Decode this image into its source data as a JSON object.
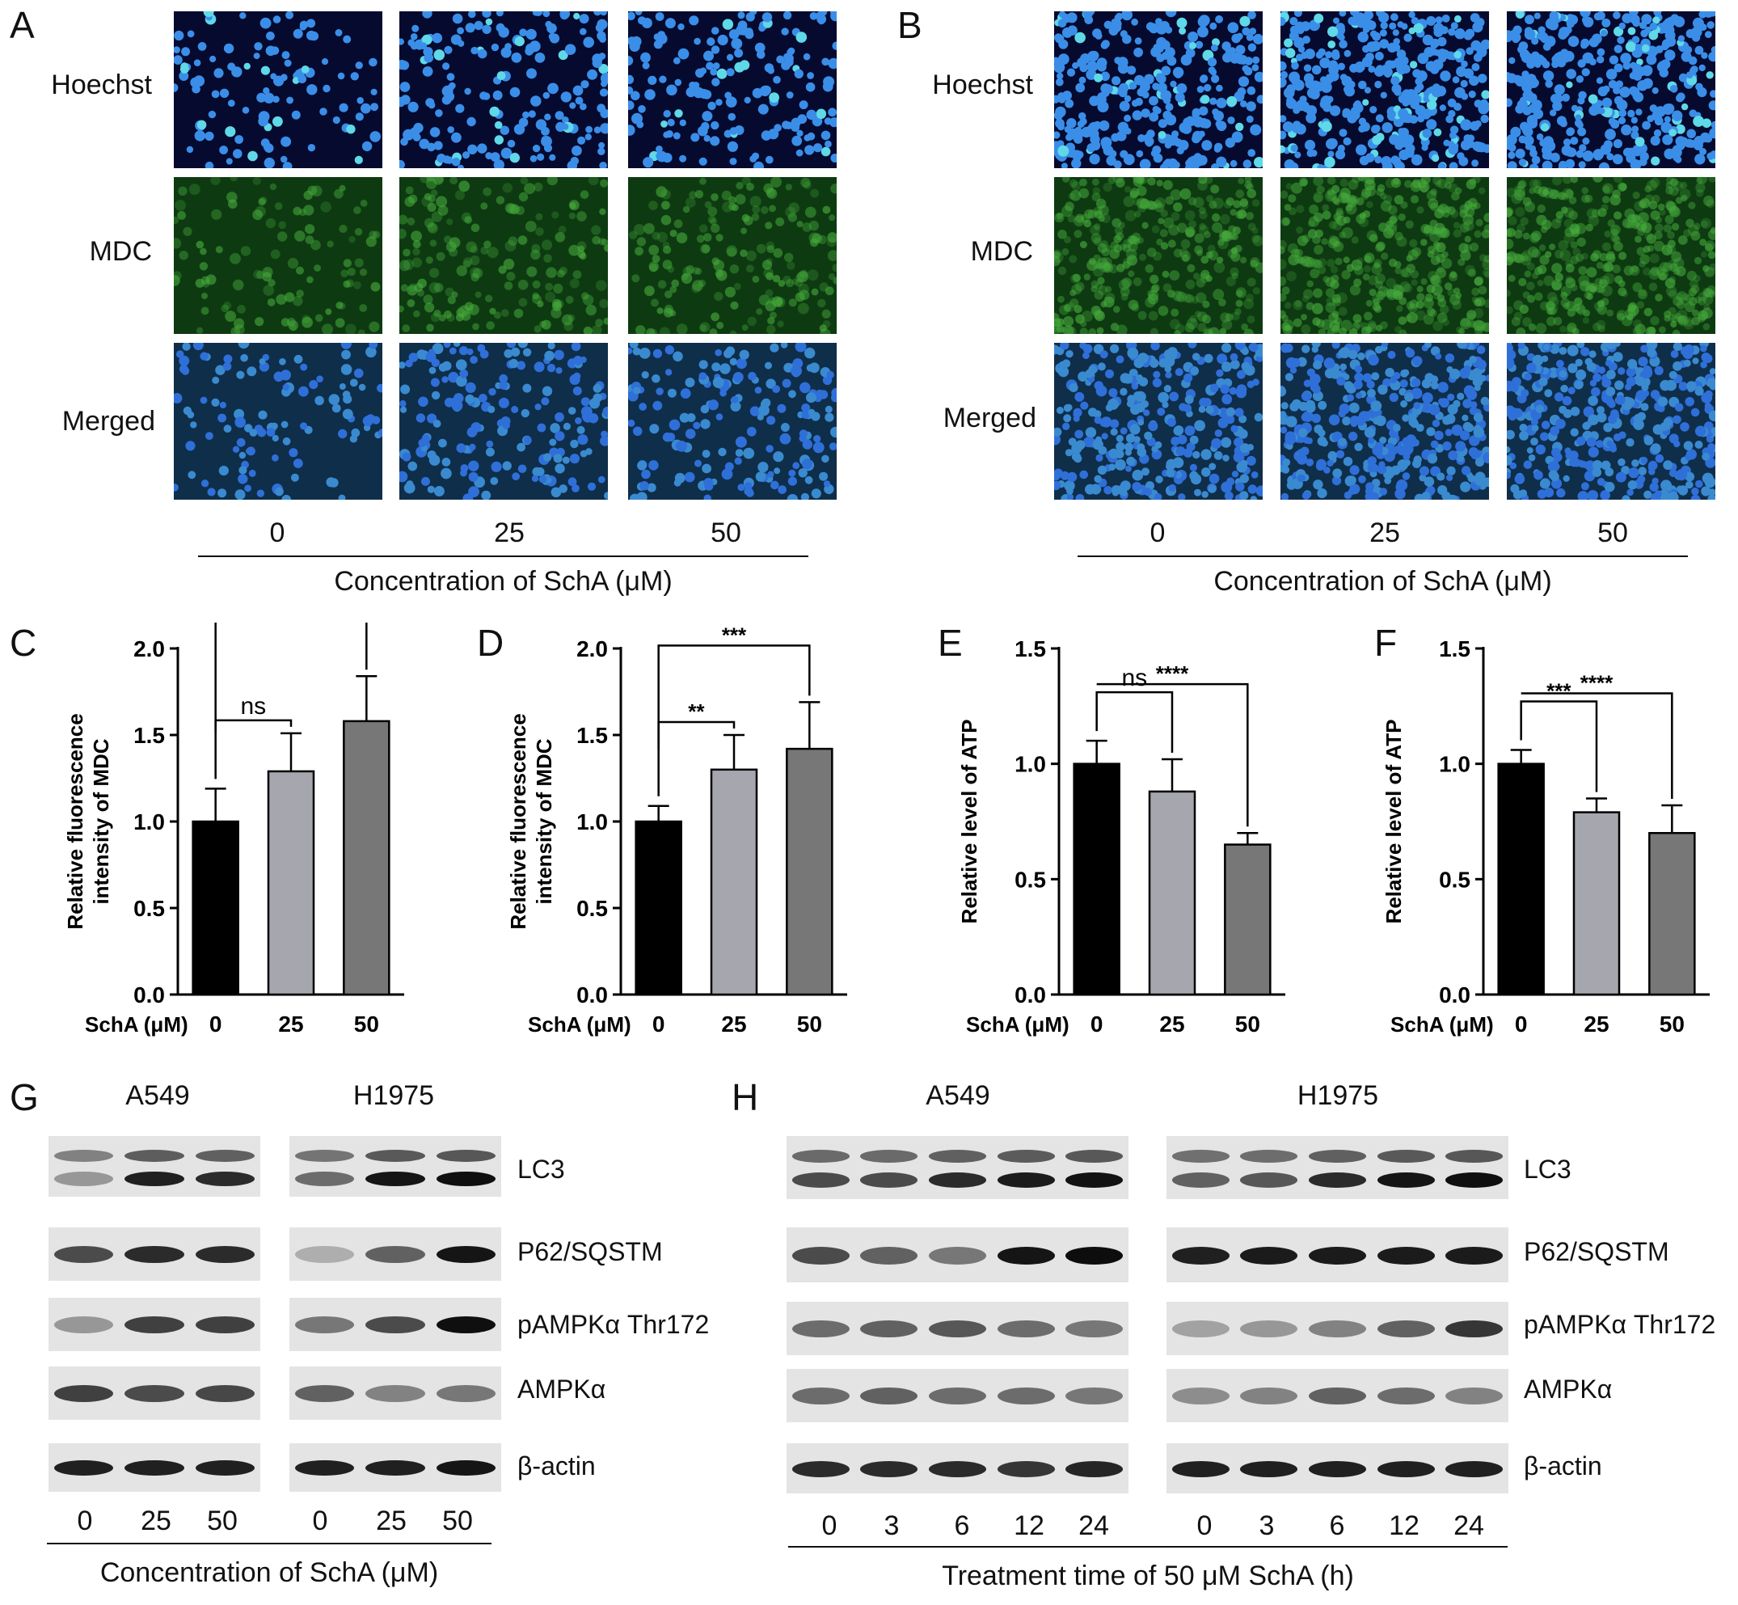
{
  "panels": {
    "A": {
      "letter": "A",
      "rows": [
        "Hoechst",
        "MDC",
        "Merged"
      ],
      "ticks": [
        "0",
        "25",
        "50"
      ],
      "caption": "Concentration of SchA (μM)"
    },
    "B": {
      "letter": "B",
      "rows": [
        "Hoechst",
        "MDC",
        "Merged"
      ],
      "ticks": [
        "0",
        "25",
        "50"
      ],
      "caption": "Concentration of SchA (μM)"
    },
    "C": {
      "letter": "C"
    },
    "D": {
      "letter": "D"
    },
    "E": {
      "letter": "E"
    },
    "F": {
      "letter": "F"
    },
    "G": {
      "letter": "G",
      "groups": [
        "A549",
        "H1975"
      ],
      "bands": [
        "LC3",
        "P62/SQSTM",
        "pAMPKα Thr172",
        "AMPKα",
        "β-actin"
      ],
      "ticks_a549": [
        "0",
        "25",
        "50"
      ],
      "ticks_h1975": [
        "0",
        "25",
        "50"
      ],
      "caption": "Concentration of SchA (μM)"
    },
    "H": {
      "letter": "H",
      "groups": [
        "A549",
        "H1975"
      ],
      "bands": [
        "LC3",
        "P62/SQSTM",
        "pAMPKα Thr172",
        "AMPKα",
        "β-actin"
      ],
      "ticks_a549": [
        "0",
        "3",
        "6",
        "12",
        "24"
      ],
      "ticks_h1975": [
        "0",
        "3",
        "6",
        "12",
        "24"
      ],
      "caption": "Treatment time of 50 μM SchA (h)"
    }
  },
  "colors": {
    "hoechst_bg": "#050a2e",
    "nuclei": "#3a8ee8",
    "mdc_bg": "#0e3a12",
    "merged_bg": "#0f2e4a",
    "bar_0": "#000000",
    "bar_25": "#a6a6ae",
    "bar_50": "#777777"
  },
  "chart_data": [
    {
      "panel": "C",
      "type": "bar",
      "ylabel": "Relative fluorescence intensity of MDC",
      "xlabel_prefix": "SchA (μM)",
      "categories": [
        "0",
        "25",
        "50"
      ],
      "values": [
        1.0,
        1.29,
        1.58
      ],
      "errors": [
        0.19,
        0.22,
        0.26
      ],
      "ylim": [
        0,
        2.0
      ],
      "yticks": [
        "0.0",
        "0.5",
        "1.0",
        "1.5",
        "2.0"
      ],
      "comparisons": [
        {
          "from": "0",
          "to": "25",
          "label": "ns"
        },
        {
          "from": "0",
          "to": "50",
          "label": "***"
        }
      ]
    },
    {
      "panel": "D",
      "type": "bar",
      "ylabel": "Relative fluorescence intensity of MDC",
      "xlabel_prefix": "SchA (μM)",
      "categories": [
        "0",
        "25",
        "50"
      ],
      "values": [
        1.0,
        1.3,
        1.42
      ],
      "errors": [
        0.09,
        0.2,
        0.27
      ],
      "ylim": [
        0,
        2.0
      ],
      "yticks": [
        "0.0",
        "0.5",
        "1.0",
        "1.5",
        "2.0"
      ],
      "comparisons": [
        {
          "from": "0",
          "to": "25",
          "label": "**"
        },
        {
          "from": "0",
          "to": "50",
          "label": "***"
        }
      ]
    },
    {
      "panel": "E",
      "type": "bar",
      "ylabel": "Relative level of ATP",
      "xlabel_prefix": "SchA (μM)",
      "categories": [
        "0",
        "25",
        "50"
      ],
      "values": [
        1.0,
        0.88,
        0.65
      ],
      "errors": [
        0.1,
        0.14,
        0.05
      ],
      "ylim": [
        0,
        1.5
      ],
      "yticks": [
        "0.0",
        "0.5",
        "1.0",
        "1.5"
      ],
      "comparisons": [
        {
          "from": "0",
          "to": "25",
          "label": "ns"
        },
        {
          "from": "0",
          "to": "50",
          "label": "****"
        }
      ]
    },
    {
      "panel": "F",
      "type": "bar",
      "ylabel": "Relative level of ATP",
      "xlabel_prefix": "SchA (μM)",
      "categories": [
        "0",
        "25",
        "50"
      ],
      "values": [
        1.0,
        0.79,
        0.7
      ],
      "errors": [
        0.06,
        0.06,
        0.12
      ],
      "ylim": [
        0,
        1.5
      ],
      "yticks": [
        "0.0",
        "0.5",
        "1.0",
        "1.5"
      ],
      "comparisons": [
        {
          "from": "0",
          "to": "25",
          "label": "***"
        },
        {
          "from": "0",
          "to": "50",
          "label": "****"
        }
      ]
    }
  ]
}
